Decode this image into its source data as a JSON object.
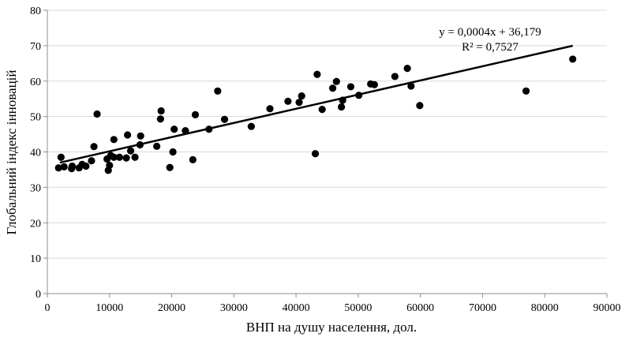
{
  "chart_data": {
    "type": "scatter",
    "xlabel": "ВНП на душу населення, дол.",
    "ylabel": "Глобальний індекс інновацій",
    "xlim": [
      0,
      90000
    ],
    "ylim": [
      0,
      80
    ],
    "x_ticks": [
      0,
      10000,
      20000,
      30000,
      40000,
      50000,
      60000,
      70000,
      80000,
      90000
    ],
    "y_ticks": [
      0,
      10,
      20,
      30,
      40,
      50,
      60,
      70,
      80
    ],
    "x_tick_labels": [
      "0",
      "10000",
      "20000",
      "30000",
      "40000",
      "50000",
      "60000",
      "70000",
      "80000",
      "90000"
    ],
    "y_tick_labels": [
      "0",
      "10",
      "20",
      "30",
      "40",
      "50",
      "60",
      "70",
      "80"
    ],
    "grid": "horizontal",
    "points": [
      {
        "x": 1800,
        "y": 35.5
      },
      {
        "x": 2200,
        "y": 38.5
      },
      {
        "x": 2700,
        "y": 35.8
      },
      {
        "x": 3900,
        "y": 35.3
      },
      {
        "x": 4000,
        "y": 36.0
      },
      {
        "x": 5100,
        "y": 35.5
      },
      {
        "x": 5600,
        "y": 36.5
      },
      {
        "x": 6200,
        "y": 36.0
      },
      {
        "x": 7100,
        "y": 37.5
      },
      {
        "x": 7500,
        "y": 41.5
      },
      {
        "x": 8000,
        "y": 50.7
      },
      {
        "x": 9600,
        "y": 38.0
      },
      {
        "x": 9800,
        "y": 34.8
      },
      {
        "x": 10000,
        "y": 36.2
      },
      {
        "x": 10200,
        "y": 39.0
      },
      {
        "x": 10700,
        "y": 38.5
      },
      {
        "x": 10700,
        "y": 43.5
      },
      {
        "x": 11600,
        "y": 38.5
      },
      {
        "x": 12700,
        "y": 38.3
      },
      {
        "x": 12900,
        "y": 44.8
      },
      {
        "x": 13400,
        "y": 40.3
      },
      {
        "x": 14100,
        "y": 38.5
      },
      {
        "x": 14900,
        "y": 42.0
      },
      {
        "x": 15000,
        "y": 44.5
      },
      {
        "x": 17600,
        "y": 41.6
      },
      {
        "x": 18200,
        "y": 49.3
      },
      {
        "x": 18300,
        "y": 51.6
      },
      {
        "x": 19700,
        "y": 35.6
      },
      {
        "x": 20200,
        "y": 40.0
      },
      {
        "x": 20400,
        "y": 46.4
      },
      {
        "x": 22200,
        "y": 46.0
      },
      {
        "x": 23400,
        "y": 37.8
      },
      {
        "x": 23800,
        "y": 50.5
      },
      {
        "x": 26000,
        "y": 46.4
      },
      {
        "x": 27400,
        "y": 57.2
      },
      {
        "x": 28500,
        "y": 49.2
      },
      {
        "x": 32800,
        "y": 47.2
      },
      {
        "x": 35800,
        "y": 52.2
      },
      {
        "x": 38700,
        "y": 54.3
      },
      {
        "x": 40500,
        "y": 54.0
      },
      {
        "x": 40900,
        "y": 55.8
      },
      {
        "x": 43100,
        "y": 39.5
      },
      {
        "x": 43400,
        "y": 61.9
      },
      {
        "x": 44200,
        "y": 52.0
      },
      {
        "x": 45900,
        "y": 58.0
      },
      {
        "x": 46500,
        "y": 59.9
      },
      {
        "x": 47300,
        "y": 52.7
      },
      {
        "x": 47500,
        "y": 54.6
      },
      {
        "x": 48800,
        "y": 58.4
      },
      {
        "x": 50100,
        "y": 56.0
      },
      {
        "x": 52000,
        "y": 59.2
      },
      {
        "x": 52600,
        "y": 59.0
      },
      {
        "x": 55900,
        "y": 61.3
      },
      {
        "x": 57900,
        "y": 63.6
      },
      {
        "x": 58500,
        "y": 58.6
      },
      {
        "x": 59900,
        "y": 53.1
      },
      {
        "x": 77000,
        "y": 57.2
      },
      {
        "x": 84500,
        "y": 66.2
      }
    ],
    "trendline": {
      "type": "linear",
      "slope": 0.0004,
      "intercept": 36.179,
      "x_range": [
        2000,
        84500
      ],
      "equation_label": "y = 0,0004x + 36,179",
      "r2_label": "R² = 0,7527"
    }
  }
}
